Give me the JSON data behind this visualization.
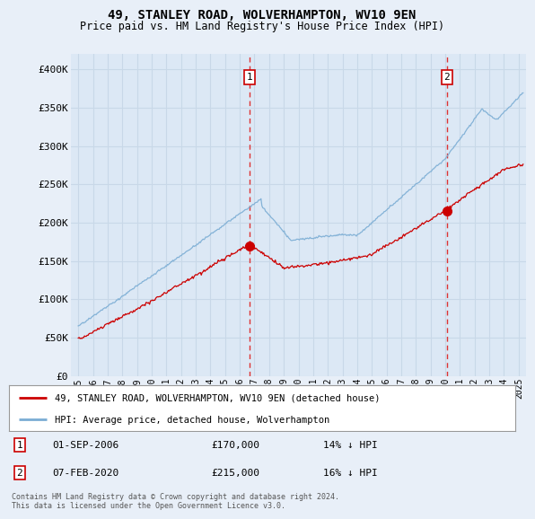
{
  "title": "49, STANLEY ROAD, WOLVERHAMPTON, WV10 9EN",
  "subtitle": "Price paid vs. HM Land Registry's House Price Index (HPI)",
  "bg_color": "#e8eff8",
  "plot_bg_color": "#dce8f5",
  "grid_color": "#c8d8e8",
  "hpi_color": "#7badd4",
  "price_color": "#cc0000",
  "dashed_color": "#dd3333",
  "ylim": [
    0,
    420000
  ],
  "yticks": [
    0,
    50000,
    100000,
    150000,
    200000,
    250000,
    300000,
    350000,
    400000
  ],
  "ytick_labels": [
    "£0",
    "£50K",
    "£100K",
    "£150K",
    "£200K",
    "£250K",
    "£300K",
    "£350K",
    "£400K"
  ],
  "sale1_x": 2006.67,
  "sale1_y": 170000,
  "sale1_label": "1",
  "sale2_x": 2020.1,
  "sale2_y": 215000,
  "sale2_label": "2",
  "legend_line1": "49, STANLEY ROAD, WOLVERHAMPTON, WV10 9EN (detached house)",
  "legend_line2": "HPI: Average price, detached house, Wolverhampton",
  "footer": "Contains HM Land Registry data © Crown copyright and database right 2024.\nThis data is licensed under the Open Government Licence v3.0.",
  "xmin": 1994.5,
  "xmax": 2025.5
}
